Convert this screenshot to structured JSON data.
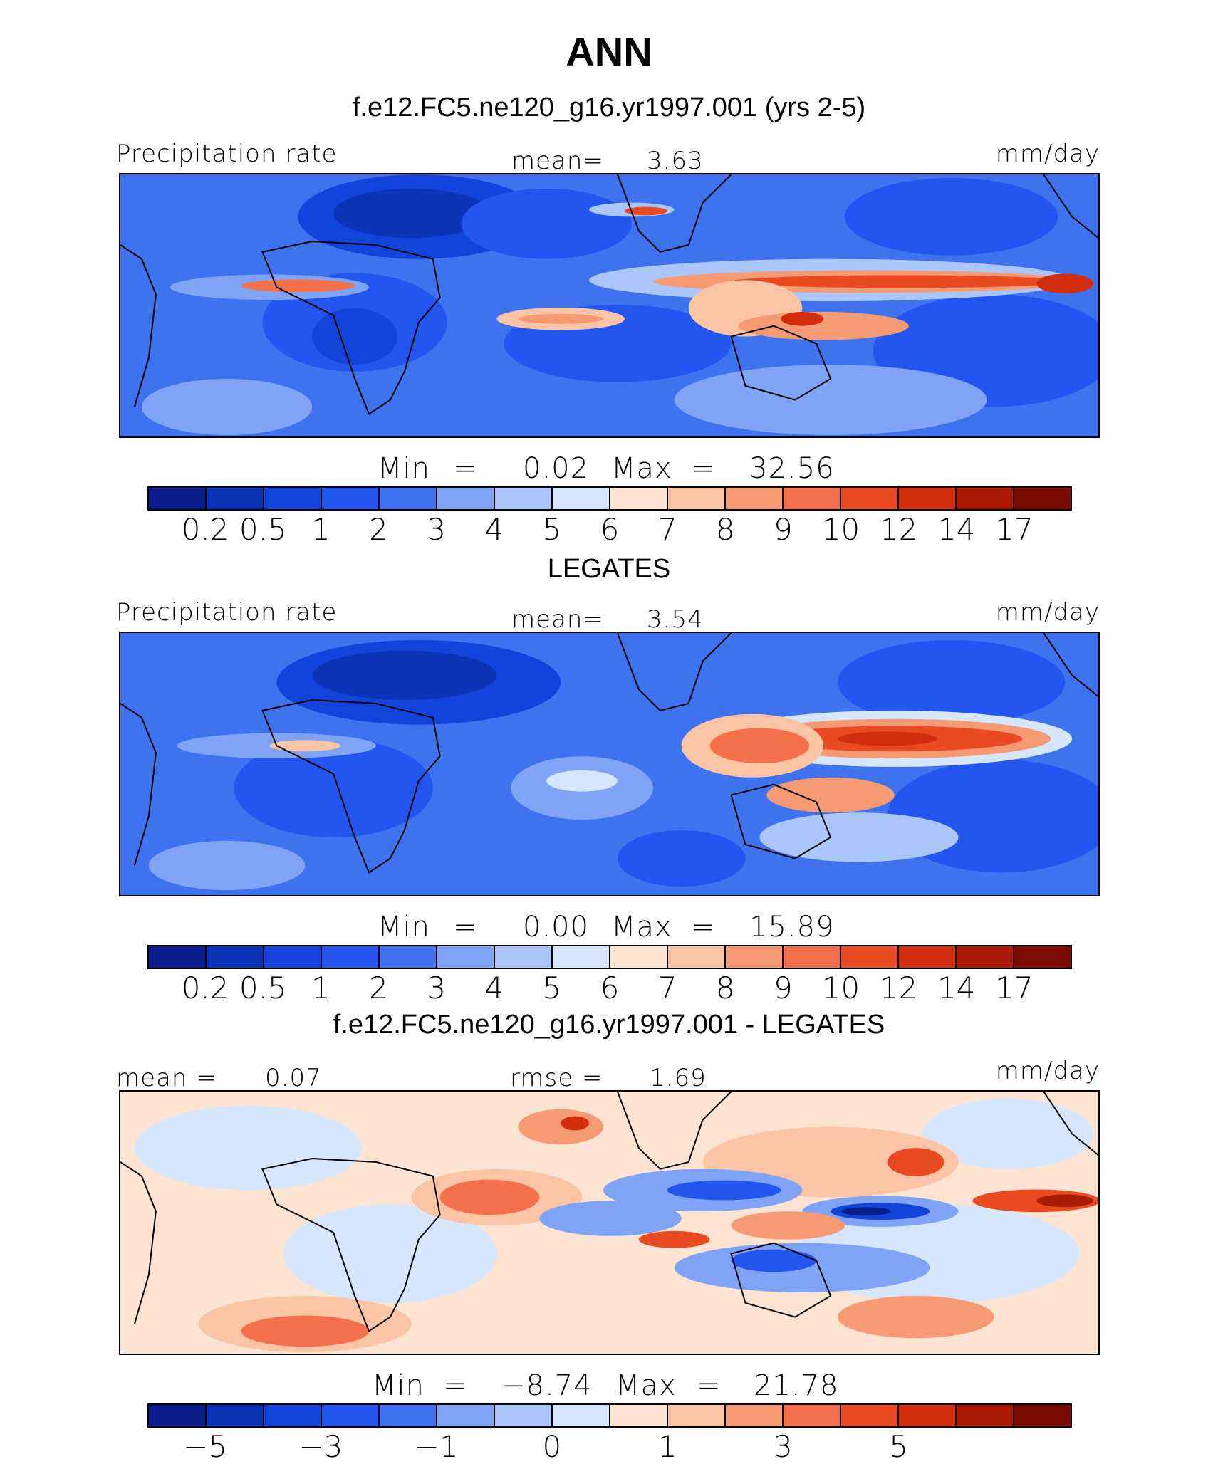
{
  "figure": {
    "title": "ANN",
    "subtitle": "f.e12.FC5.ne120_g16.yr1997.001 (yrs 2-5)"
  },
  "palette": [
    "#0a1f8c",
    "#0b34b8",
    "#1244dc",
    "#2356f0",
    "#3f72ee",
    "#7fa3f5",
    "#abc6fa",
    "#d5e6fd",
    "#fde4d2",
    "#fbc4a4",
    "#f59a72",
    "#f3704a",
    "#ea4a22",
    "#d22d0c",
    "#aa1a06",
    "#7d0c02"
  ],
  "panels": [
    {
      "title": "",
      "left_label": "Precipitation rate",
      "center_label": "mean=",
      "center_value": "3.63",
      "right_label": "mm/day",
      "min_label": "Min",
      "min_value": "0.02",
      "max_label": "Max",
      "max_value": "32.56",
      "ticks": [
        "0.2",
        "0.5",
        "1",
        "2",
        "3",
        "4",
        "5",
        "6",
        "7",
        "8",
        "9",
        "10",
        "12",
        "14",
        "17"
      ]
    },
    {
      "title": "LEGATES",
      "left_label": "Precipitation rate",
      "center_label": "mean=",
      "center_value": "3.54",
      "right_label": "mm/day",
      "min_label": "Min",
      "min_value": "0.00",
      "max_label": "Max",
      "max_value": "15.89",
      "ticks": [
        "0.2",
        "0.5",
        "1",
        "2",
        "3",
        "4",
        "5",
        "6",
        "7",
        "8",
        "9",
        "10",
        "12",
        "14",
        "17"
      ]
    },
    {
      "title": "f.e12.FC5.ne120_g16.yr1997.001 - LEGATES",
      "left_label": "mean =",
      "left_value": "0.07",
      "center_label": "rmse =",
      "center_value": "1.69",
      "right_label": "mm/day",
      "min_label": "Min",
      "min_value": "−8.74",
      "max_label": "Max",
      "max_value": "21.78",
      "ticks": [
        "−5",
        "",
        "−3",
        "",
        "−1",
        "",
        "0",
        "",
        "1",
        "",
        "3",
        "",
        "5",
        "",
        ""
      ]
    }
  ],
  "chart_data": [
    {
      "type": "heatmap",
      "title": "f.e12.FC5.ne120_g16.yr1997.001 (yrs 2-5)",
      "variable": "Precipitation rate",
      "units": "mm/day",
      "mean": 3.63,
      "min": 0.02,
      "max": 32.56,
      "contour_levels": [
        0.2,
        0.5,
        1,
        2,
        3,
        4,
        5,
        6,
        7,
        8,
        9,
        10,
        12,
        14,
        17
      ]
    },
    {
      "type": "heatmap",
      "title": "LEGATES",
      "variable": "Precipitation rate",
      "units": "mm/day",
      "mean": 3.54,
      "min": 0.0,
      "max": 15.89,
      "contour_levels": [
        0.2,
        0.5,
        1,
        2,
        3,
        4,
        5,
        6,
        7,
        8,
        9,
        10,
        12,
        14,
        17
      ]
    },
    {
      "type": "heatmap",
      "title": "f.e12.FC5.ne120_g16.yr1997.001 - LEGATES",
      "units": "mm/day",
      "mean": 0.07,
      "rmse": 1.69,
      "min": -8.74,
      "max": 21.78,
      "contour_levels": [
        -5,
        -3,
        -1,
        0,
        1,
        3,
        5
      ]
    }
  ]
}
